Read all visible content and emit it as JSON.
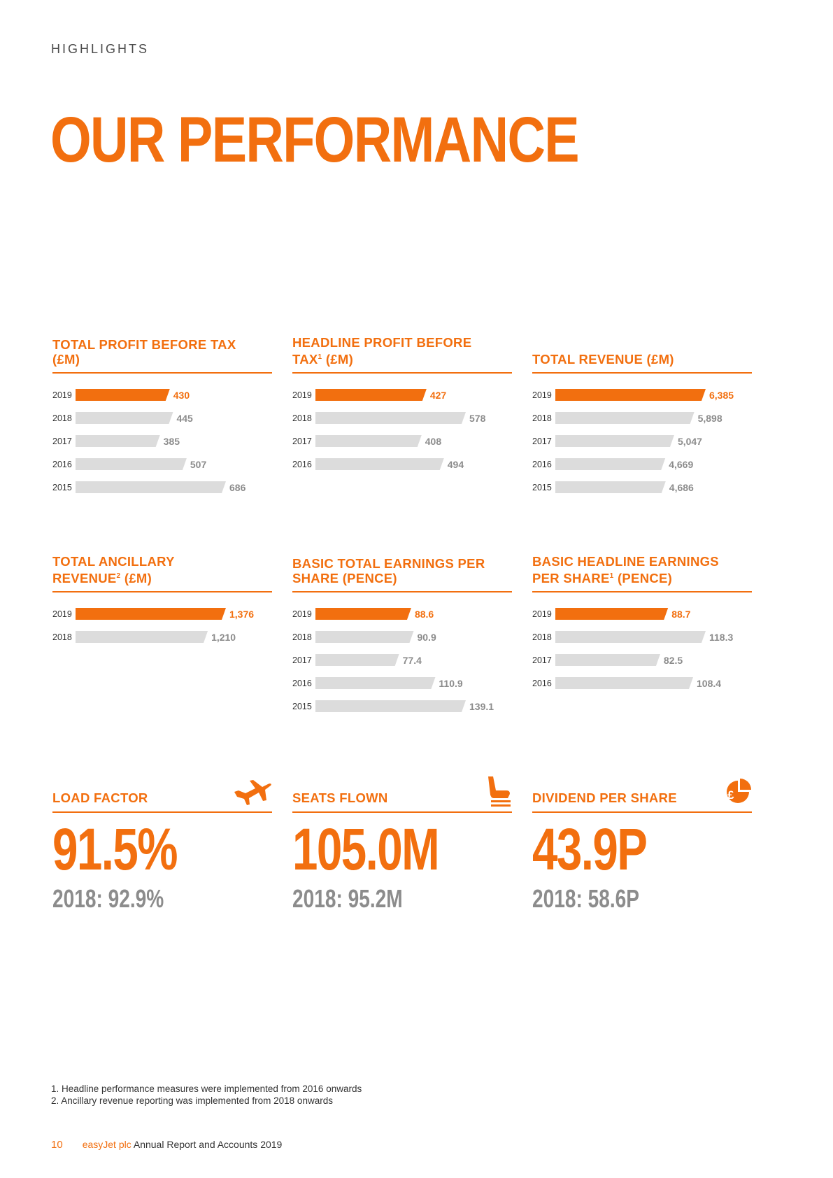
{
  "header": {
    "section": "HIGHLIGHTS",
    "title": "OUR PERFORMANCE"
  },
  "colors": {
    "accent": "#f26f0f",
    "bar_grey": "#dcdcdc",
    "muted_text": "#8c8c8c"
  },
  "chart_data": [
    {
      "type": "bar",
      "orientation": "horizontal",
      "title": "TOTAL PROFIT BEFORE TAX (£M)",
      "categories": [
        "2019",
        "2018",
        "2017",
        "2016",
        "2015"
      ],
      "values": [
        430,
        445,
        385,
        507,
        686
      ],
      "labels": [
        "430",
        "445",
        "385",
        "507",
        "686"
      ],
      "highlight": "2019"
    },
    {
      "type": "bar",
      "orientation": "horizontal",
      "title": "HEADLINE PROFIT BEFORE TAX¹ (£M)",
      "categories": [
        "2019",
        "2018",
        "2017",
        "2016"
      ],
      "values": [
        427,
        578,
        408,
        494
      ],
      "labels": [
        "427",
        "578",
        "408",
        "494"
      ],
      "highlight": "2019"
    },
    {
      "type": "bar",
      "orientation": "horizontal",
      "title": "TOTAL REVENUE (£M)",
      "categories": [
        "2019",
        "2018",
        "2017",
        "2016",
        "2015"
      ],
      "values": [
        6385,
        5898,
        5047,
        4669,
        4686
      ],
      "labels": [
        "6,385",
        "5,898",
        "5,047",
        "4,669",
        "4,686"
      ],
      "highlight": "2019"
    },
    {
      "type": "bar",
      "orientation": "horizontal",
      "title": "TOTAL ANCILLARY REVENUE² (£M)",
      "categories": [
        "2019",
        "2018"
      ],
      "values": [
        1376,
        1210
      ],
      "labels": [
        "1,376",
        "1,210"
      ],
      "highlight": "2019"
    },
    {
      "type": "bar",
      "orientation": "horizontal",
      "title": "BASIC TOTAL EARNINGS PER SHARE (PENCE)",
      "categories": [
        "2019",
        "2018",
        "2017",
        "2016",
        "2015"
      ],
      "values": [
        88.6,
        90.9,
        77.4,
        110.9,
        139.1
      ],
      "labels": [
        "88.6",
        "90.9",
        "77.4",
        "110.9",
        "139.1"
      ],
      "highlight": "2019"
    },
    {
      "type": "bar",
      "orientation": "horizontal",
      "title": "BASIC HEADLINE EARNINGS PER SHARE¹ (PENCE)",
      "categories": [
        "2019",
        "2018",
        "2017",
        "2016"
      ],
      "values": [
        88.7,
        118.3,
        82.5,
        108.4
      ],
      "labels": [
        "88.7",
        "118.3",
        "82.5",
        "108.4"
      ],
      "highlight": "2019"
    }
  ],
  "kpis": [
    {
      "title": "LOAD FACTOR",
      "value": "91.5%",
      "previous": "2018: 92.9%",
      "icon": "airplane-icon"
    },
    {
      "title": "SEATS FLOWN",
      "value": "105.0M",
      "previous": "2018: 95.2M",
      "icon": "seat-icon"
    },
    {
      "title": "DIVIDEND PER SHARE",
      "value": "43.9P",
      "previous": "2018: 58.6P",
      "icon": "pound-pie-icon"
    }
  ],
  "footnotes": [
    "1.  Headline performance measures were implemented from 2016 onwards",
    "2.  Ancillary revenue reporting was implemented from 2018 onwards"
  ],
  "footer": {
    "page_number": "10",
    "brand": "easyJet plc",
    "text": " Annual Report and Accounts 2019"
  }
}
